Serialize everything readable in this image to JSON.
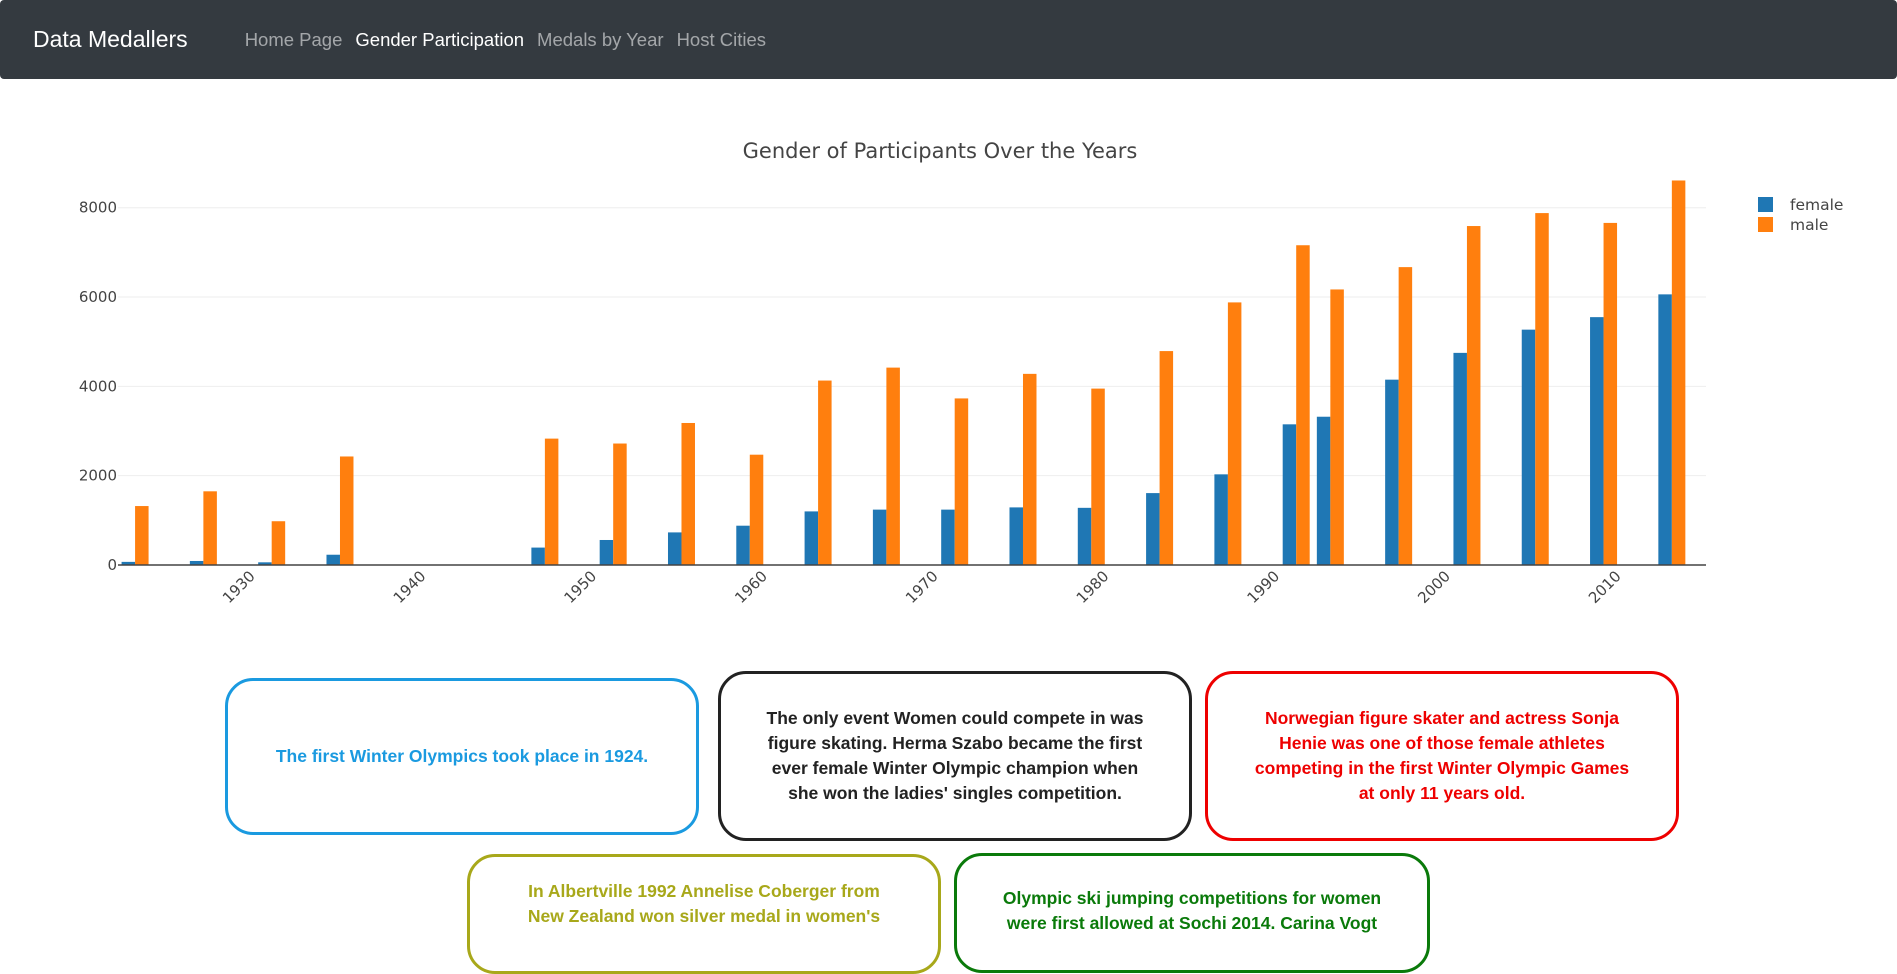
{
  "navbar": {
    "brand": "Data Medallers",
    "links": [
      {
        "label": "Home Page",
        "active": false
      },
      {
        "label": "Gender Participation",
        "active": true
      },
      {
        "label": "Medals by Year",
        "active": false
      },
      {
        "label": "Host Cities",
        "active": false
      }
    ]
  },
  "colors": {
    "female": "#1f77b4",
    "male": "#ff7f0e",
    "navbar_bg": "#343a40"
  },
  "chart_data": {
    "type": "bar",
    "title": "Gender of Participants Over the Years",
    "xlabel": "",
    "ylabel": "",
    "x": [
      1924,
      1928,
      1932,
      1936,
      1948,
      1952,
      1956,
      1960,
      1964,
      1968,
      1972,
      1976,
      1980,
      1984,
      1988,
      1992,
      1994,
      1998,
      2002,
      2006,
      2010,
      2014
    ],
    "xlim": [
      1923,
      2016
    ],
    "ylim": [
      0,
      8800
    ],
    "x_ticks": [
      1930,
      1940,
      1950,
      1960,
      1970,
      1980,
      1990,
      2000,
      2010
    ],
    "y_ticks": [
      0,
      2000,
      4000,
      6000,
      8000
    ],
    "grid": true,
    "legend_position": "top-right",
    "series": [
      {
        "name": "female",
        "values": [
          70,
          90,
          60,
          230,
          390,
          560,
          730,
          880,
          1200,
          1240,
          1240,
          1290,
          1280,
          1610,
          2030,
          3150,
          3320,
          4150,
          4750,
          5270,
          5550,
          6060
        ]
      },
      {
        "name": "male",
        "values": [
          1320,
          1650,
          980,
          2430,
          2830,
          2720,
          3180,
          2470,
          4130,
          4420,
          3730,
          4280,
          3950,
          4790,
          5880,
          7160,
          6170,
          6670,
          7590,
          7880,
          7660,
          8610
        ]
      }
    ]
  },
  "facts": [
    {
      "text": "The first Winter Olympics took place in 1924.",
      "color": "#1a9ae0"
    },
    {
      "text": "The only event Women could compete in was figure skating. Herma Szabo became the first ever female Winter Olympic champion when she won the ladies' singles competition.",
      "color": "#222222"
    },
    {
      "text": "Norwegian figure skater and actress Sonja Henie was one of those female athletes competing in the first Winter Olympic Games at only 11 years old.",
      "color": "#ee0000"
    },
    {
      "text": "In Albertville 1992 Annelise Coberger from New Zealand won silver medal in women's",
      "color": "#a8a81a"
    },
    {
      "text": "Olympic ski jumping competitions for women were first allowed at Sochi 2014. Carina Vogt",
      "color": "#0a7a0a"
    }
  ]
}
